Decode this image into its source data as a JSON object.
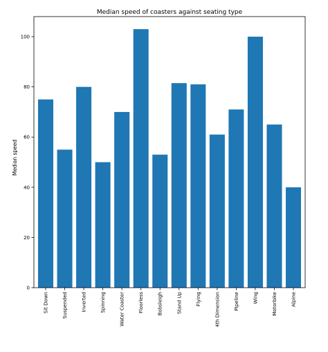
{
  "chart_data": {
    "type": "bar",
    "title": "Median speed of coasters against seating type",
    "xlabel": "",
    "ylabel": "Median speed",
    "categories": [
      "Sit Down",
      "Suspended",
      "Inverted",
      "Spinning",
      "Water Coaster",
      "Floorless",
      "Bobsleigh",
      "Stand Up",
      "Flying",
      "4th Dimension",
      "Pipeline",
      "Wing",
      "Motorbike",
      "Alpine"
    ],
    "values": [
      75,
      55,
      80,
      50,
      70,
      103,
      53,
      81.5,
      81,
      61,
      71,
      100,
      65,
      40
    ],
    "ylim": [
      0,
      108
    ],
    "yticks": [
      0,
      20,
      40,
      60,
      80,
      100
    ],
    "grid": false,
    "colors": {
      "bar": "#1f77b4"
    }
  }
}
